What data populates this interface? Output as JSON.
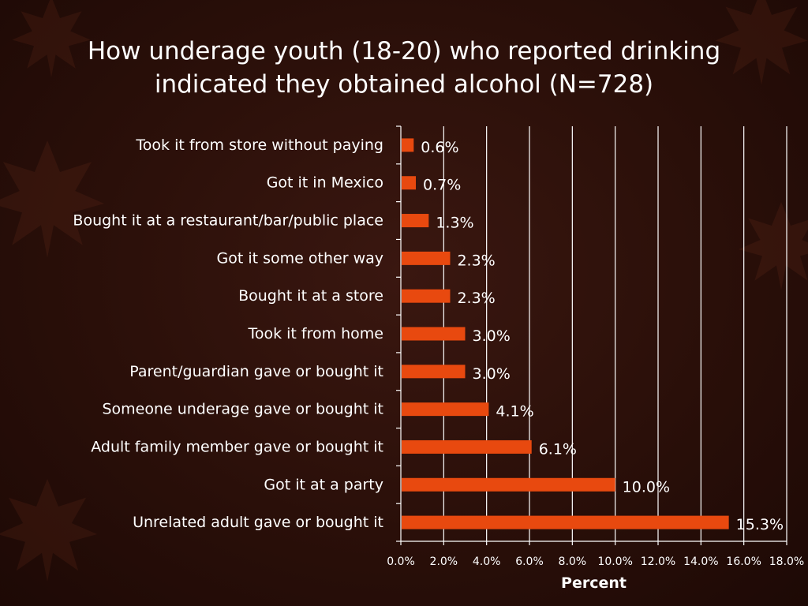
{
  "chart_data": {
    "type": "bar",
    "orientation": "horizontal",
    "title_lines": [
      "How underage youth (18-20) who reported drinking",
      "indicated they obtained alcohol (N=728)"
    ],
    "categories": [
      "Took it from store without paying",
      "Got it in Mexico",
      "Bought it at a restaurant/bar/public place",
      "Got it some other way",
      "Bought it at a store",
      "Took it from home",
      "Parent/guardian gave or bought it",
      "Someone underage gave or bought it",
      "Adult family member gave or bought it",
      "Got it at a party",
      "Unrelated adult gave or bought it"
    ],
    "values": [
      0.6,
      0.7,
      1.3,
      2.3,
      2.3,
      3.0,
      3.0,
      4.1,
      6.1,
      10.0,
      15.3
    ],
    "value_labels": [
      "0.6%",
      "0.7%",
      "1.3%",
      "2.3%",
      "2.3%",
      "3.0%",
      "3.0%",
      "4.1%",
      "6.1%",
      "10.0%",
      "15.3%"
    ],
    "xlabel": "Percent",
    "xlim": [
      0,
      18
    ],
    "x_ticks": [
      0,
      2,
      4,
      6,
      8,
      10,
      12,
      14,
      16,
      18
    ],
    "x_tick_labels": [
      "0.0%",
      "2.0%",
      "4.0%",
      "6.0%",
      "8.0%",
      "10.0%",
      "12.0%",
      "14.0%",
      "16.0%",
      "18.0%"
    ],
    "grid": "vertical",
    "bar_color": "#e8490f"
  }
}
